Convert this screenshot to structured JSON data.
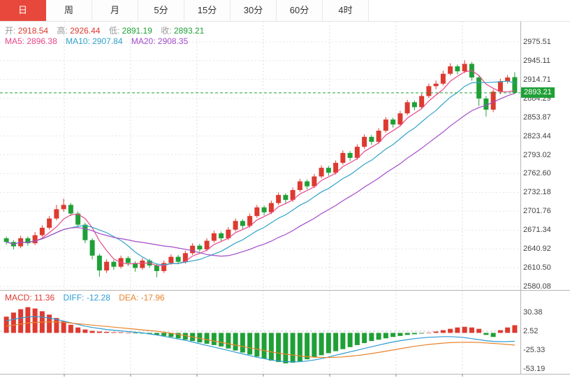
{
  "tabs": {
    "items": [
      "日",
      "周",
      "月",
      "5分",
      "15分",
      "30分",
      "60分",
      "4时"
    ],
    "active_index": 0
  },
  "ohlc": {
    "open_label": "开:",
    "open_value": "2918.54",
    "high_label": "高:",
    "high_value": "2926.44",
    "low_label": "低:",
    "low_value": "2891.19",
    "close_label": "收:",
    "close_value": "2893.21"
  },
  "ma": {
    "ma5_label": "MA5:",
    "ma5_value": "2896.38",
    "ma10_label": "MA10:",
    "ma10_value": "2907.84",
    "ma20_label": "MA20:",
    "ma20_value": "2908.35"
  },
  "macd_info": {
    "macd_label": "MACD:",
    "macd_value": "11.36",
    "diff_label": "DIFF:",
    "diff_value": "-12.28",
    "dea_label": "DEA:",
    "dea_value": "-17.96"
  },
  "colors": {
    "up": "#dd3a30",
    "down": "#1fa037",
    "ma5": "#e8488a",
    "ma10": "#31a3c8",
    "ma20": "#a24bc8",
    "diff": "#2e9bd6",
    "dea": "#e8842c",
    "badge": "#1fa037",
    "active_tab": "#e8483c"
  },
  "chart_data": {
    "type": "candlestick",
    "title": "",
    "current_price": 2893.21,
    "current_price_label": "2893.21",
    "price_axis": {
      "max": 2975.51,
      "min": 2580.08,
      "labels": [
        "2975.51",
        "2945.11",
        "2914.71",
        "2884.29",
        "2853.87",
        "2823.44",
        "2793.02",
        "2762.60",
        "2732.18",
        "2701.76",
        "2671.34",
        "2640.92",
        "2610.50",
        "2580.08"
      ]
    },
    "candles": {
      "open": [
        2658,
        2652,
        2645,
        2658,
        2650,
        2663,
        2675,
        2690,
        2705,
        2712,
        2698,
        2680,
        2655,
        2630,
        2606,
        2620,
        2612,
        2626,
        2618,
        2610,
        2622,
        2614,
        2605,
        2618,
        2628,
        2620,
        2634,
        2646,
        2640,
        2654,
        2666,
        2658,
        2672,
        2686,
        2678,
        2694,
        2708,
        2700,
        2715,
        2728,
        2720,
        2736,
        2750,
        2742,
        2758,
        2772,
        2764,
        2780,
        2796,
        2788,
        2806,
        2822,
        2814,
        2832,
        2850,
        2842,
        2860,
        2878,
        2870,
        2888,
        2904,
        2908,
        2924,
        2936,
        2928,
        2940,
        2918,
        2884,
        2866,
        2895,
        2912,
        2918.54
      ],
      "high": [
        2661,
        2655,
        2662,
        2661,
        2668,
        2679,
        2694,
        2712,
        2722,
        2715,
        2701,
        2683,
        2658,
        2633,
        2624,
        2623,
        2630,
        2629,
        2621,
        2626,
        2625,
        2617,
        2622,
        2632,
        2631,
        2638,
        2650,
        2649,
        2658,
        2670,
        2669,
        2676,
        2690,
        2689,
        2698,
        2712,
        2711,
        2719,
        2732,
        2731,
        2740,
        2754,
        2753,
        2762,
        2776,
        2775,
        2784,
        2800,
        2799,
        2810,
        2826,
        2825,
        2836,
        2854,
        2853,
        2864,
        2882,
        2881,
        2892,
        2908,
        2913,
        2929,
        2941,
        2939,
        2946,
        2943,
        2921,
        2888,
        2899,
        2916,
        2922,
        2926.44
      ],
      "low": [
        2648,
        2640,
        2642,
        2646,
        2647,
        2660,
        2672,
        2687,
        2701,
        2694,
        2675,
        2650,
        2624,
        2596,
        2602,
        2607,
        2609,
        2613,
        2604,
        2607,
        2610,
        2595,
        2602,
        2615,
        2616,
        2617,
        2631,
        2636,
        2637,
        2651,
        2653,
        2655,
        2669,
        2673,
        2675,
        2691,
        2695,
        2697,
        2712,
        2715,
        2717,
        2733,
        2737,
        2739,
        2755,
        2759,
        2761,
        2777,
        2783,
        2785,
        2803,
        2809,
        2811,
        2829,
        2837,
        2839,
        2857,
        2865,
        2867,
        2885,
        2899,
        2905,
        2921,
        2923,
        2925,
        2913,
        2872,
        2855,
        2862,
        2891,
        2908,
        2891.19
      ],
      "close": [
        2652,
        2645,
        2658,
        2650,
        2663,
        2675,
        2690,
        2705,
        2712,
        2698,
        2680,
        2655,
        2630,
        2606,
        2620,
        2612,
        2626,
        2618,
        2610,
        2622,
        2614,
        2605,
        2618,
        2628,
        2620,
        2634,
        2646,
        2640,
        2654,
        2666,
        2658,
        2672,
        2686,
        2678,
        2694,
        2708,
        2700,
        2715,
        2728,
        2720,
        2736,
        2750,
        2742,
        2758,
        2772,
        2764,
        2780,
        2796,
        2788,
        2806,
        2822,
        2814,
        2832,
        2850,
        2842,
        2860,
        2878,
        2870,
        2888,
        2904,
        2908,
        2924,
        2936,
        2928,
        2940,
        2918,
        2884,
        2866,
        2895,
        2912,
        2918,
        2893.21
      ]
    },
    "macd": {
      "max": 30.38,
      "min": -53.19,
      "dashed_level": 2.52,
      "axis_labels": [
        "30.38",
        "2.52",
        "-25.33",
        "-53.19"
      ],
      "histogram": [
        24,
        30,
        35,
        38,
        36,
        32,
        27,
        22,
        17,
        12,
        8,
        5,
        3,
        2,
        1.5,
        1,
        1,
        0.5,
        -0.5,
        -1,
        -2,
        -3,
        -4.5,
        -6,
        -8,
        -10,
        -12,
        -14,
        -16,
        -18,
        -20,
        -23,
        -26,
        -29,
        -32,
        -35,
        -38,
        -41,
        -43,
        -45,
        -44,
        -42,
        -39,
        -36,
        -33,
        -30,
        -27,
        -24,
        -21,
        -18,
        -15,
        -12,
        -10,
        -8,
        -6,
        -4.5,
        -3,
        -2,
        -1,
        0.5,
        2,
        4,
        6,
        8,
        9,
        8,
        6,
        -3,
        -6,
        4,
        8,
        11.36
      ],
      "diff": [
        18,
        20,
        22,
        23.5,
        24,
        23.5,
        22,
        20,
        17.5,
        15,
        12.5,
        10,
        8,
        6.5,
        5,
        4,
        3,
        2,
        1,
        0,
        -1.5,
        -3,
        -5,
        -7,
        -9,
        -11,
        -13.5,
        -16,
        -18.5,
        -21,
        -23.5,
        -26,
        -28.5,
        -31,
        -33.5,
        -36,
        -38,
        -40,
        -41.5,
        -42.5,
        -42.8,
        -42.5,
        -41.5,
        -40,
        -38,
        -35.5,
        -33,
        -30.5,
        -28,
        -25.5,
        -23,
        -20.5,
        -18,
        -15.5,
        -13.5,
        -11.5,
        -10,
        -8.5,
        -7.5,
        -6.5,
        -6,
        -5.5,
        -5.5,
        -6,
        -7,
        -8.5,
        -10,
        -11.5,
        -12.5,
        -13,
        -12.8,
        -12.28
      ],
      "dea": [
        10,
        11.5,
        13,
        14.5,
        15.5,
        16,
        16.2,
        16,
        15.5,
        14.5,
        13.5,
        12.5,
        11.5,
        10.5,
        9.5,
        8.5,
        7.5,
        6.5,
        5.5,
        4.5,
        3.5,
        2.5,
        1,
        -0.5,
        -2,
        -4,
        -6,
        -8,
        -10,
        -12,
        -14,
        -16,
        -18,
        -20,
        -22,
        -24,
        -26,
        -28,
        -29.8,
        -31.4,
        -32.8,
        -34,
        -35,
        -35.8,
        -36.2,
        -36.3,
        -36,
        -35.4,
        -34.5,
        -33.4,
        -32,
        -30.5,
        -28.8,
        -27,
        -25.2,
        -23.4,
        -21.6,
        -19.9,
        -18.4,
        -17.1,
        -16,
        -15.1,
        -14.4,
        -14,
        -13.8,
        -13.9,
        -14.2,
        -14.8,
        -15.5,
        -16.3,
        -17.1,
        -17.96
      ]
    }
  }
}
